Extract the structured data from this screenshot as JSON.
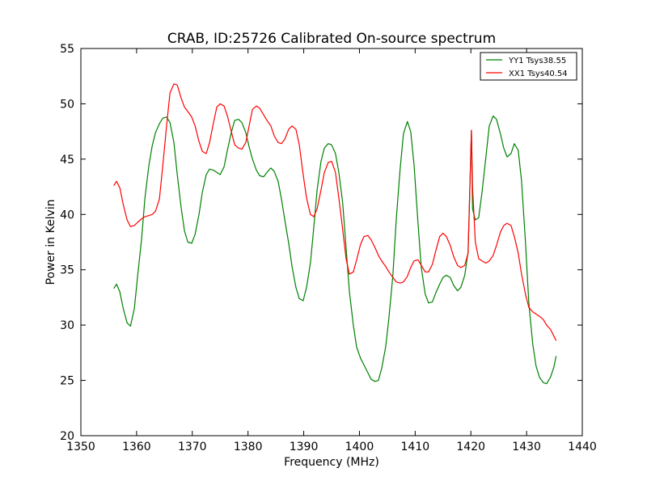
{
  "chart_data": {
    "type": "line",
    "title": "CRAB, ID:25726 Calibrated On-source spectrum",
    "xlabel": "Frequency (MHz)",
    "ylabel": "Power in Kelvin",
    "xlim": [
      1350,
      1440
    ],
    "ylim": [
      20,
      55
    ],
    "xticks": [
      1350,
      1360,
      1370,
      1380,
      1390,
      1400,
      1410,
      1420,
      1430,
      1440
    ],
    "yticks": [
      20,
      25,
      30,
      35,
      40,
      45,
      50,
      55
    ],
    "grid": false,
    "legend_position": "top-right",
    "series": [
      {
        "name": "YY1 Tsys38.55",
        "color": "#008000",
        "x": [
          1355.9,
          1356.4,
          1357.0,
          1357.6,
          1358.3,
          1358.9,
          1359.6,
          1360.2,
          1360.9,
          1361.5,
          1362.2,
          1362.8,
          1363.4,
          1364.1,
          1364.7,
          1365.4,
          1366.0,
          1366.7,
          1367.3,
          1368.0,
          1368.6,
          1369.2,
          1369.9,
          1370.5,
          1371.2,
          1371.8,
          1372.5,
          1373.1,
          1373.8,
          1374.4,
          1375.0,
          1375.7,
          1376.3,
          1377.0,
          1377.6,
          1378.3,
          1378.9,
          1379.6,
          1380.2,
          1380.8,
          1381.5,
          1382.1,
          1382.8,
          1383.4,
          1384.1,
          1384.7,
          1385.4,
          1386.0,
          1386.6,
          1387.3,
          1387.9,
          1388.6,
          1389.2,
          1389.9,
          1390.5,
          1391.2,
          1391.8,
          1392.4,
          1393.1,
          1393.7,
          1394.4,
          1395.0,
          1395.7,
          1396.3,
          1397.0,
          1397.6,
          1398.2,
          1398.9,
          1399.5,
          1400.2,
          1400.8,
          1401.5,
          1402.1,
          1402.8,
          1403.4,
          1404.0,
          1404.7,
          1405.3,
          1406.0,
          1406.6,
          1407.3,
          1407.9,
          1408.6,
          1409.2,
          1409.8,
          1410.5,
          1411.1,
          1411.8,
          1412.4,
          1413.1,
          1413.7,
          1414.4,
          1415.0,
          1415.6,
          1416.3,
          1416.9,
          1417.6,
          1418.2,
          1418.9,
          1419.5,
          1420.1,
          1420.3,
          1420.8,
          1421.4,
          1422.0,
          1422.7,
          1423.3,
          1424.0,
          1424.6,
          1425.3,
          1425.9,
          1426.5,
          1427.2,
          1427.8,
          1428.5,
          1429.1,
          1429.8,
          1430.4,
          1431.1,
          1431.7,
          1432.3,
          1433.0,
          1433.6,
          1434.3,
          1434.9,
          1435.3
        ],
        "values": [
          33.3,
          33.7,
          33.0,
          31.5,
          30.2,
          29.9,
          31.5,
          34.5,
          37.8,
          41.5,
          44.4,
          46.2,
          47.4,
          48.2,
          48.7,
          48.8,
          48.3,
          46.5,
          43.6,
          40.6,
          38.5,
          37.5,
          37.4,
          38.2,
          40.0,
          42.0,
          43.6,
          44.1,
          44.0,
          43.8,
          43.6,
          44.3,
          45.8,
          47.4,
          48.5,
          48.6,
          48.3,
          47.4,
          46.1,
          45.0,
          44.0,
          43.5,
          43.4,
          43.8,
          44.2,
          43.9,
          43.0,
          41.4,
          39.5,
          37.4,
          35.3,
          33.4,
          32.4,
          32.2,
          33.4,
          35.6,
          38.8,
          42.2,
          44.8,
          46.0,
          46.4,
          46.3,
          45.5,
          43.8,
          41.0,
          37.0,
          33.0,
          30.0,
          28.0,
          27.0,
          26.4,
          25.7,
          25.1,
          24.9,
          25.0,
          26.1,
          28.0,
          30.7,
          34.5,
          39.5,
          44.1,
          47.3,
          48.4,
          47.5,
          44.5,
          39.3,
          35.2,
          32.8,
          32.0,
          32.1,
          32.9,
          33.7,
          34.3,
          34.5,
          34.3,
          33.6,
          33.1,
          33.4,
          34.5,
          36.6,
          47.6,
          40.5,
          39.5,
          39.7,
          42.0,
          45.2,
          48.0,
          48.9,
          48.6,
          47.3,
          46.0,
          45.2,
          45.5,
          46.4,
          45.8,
          43.0,
          37.5,
          32.0,
          28.3,
          26.3,
          25.3,
          24.8,
          24.7,
          25.3,
          26.2,
          27.2
        ]
      },
      {
        "name": "XX1 Tsys40.54",
        "color": "#ff0000",
        "x": [
          1355.9,
          1356.4,
          1357.0,
          1357.6,
          1358.3,
          1358.9,
          1359.6,
          1360.2,
          1360.9,
          1361.5,
          1362.2,
          1362.8,
          1363.4,
          1364.1,
          1364.7,
          1365.4,
          1366.0,
          1366.7,
          1367.3,
          1368.0,
          1368.6,
          1369.2,
          1369.9,
          1370.5,
          1371.2,
          1371.8,
          1372.5,
          1373.1,
          1373.8,
          1374.4,
          1375.0,
          1375.7,
          1376.3,
          1377.0,
          1377.6,
          1378.3,
          1378.9,
          1379.6,
          1380.2,
          1380.8,
          1381.5,
          1382.1,
          1382.8,
          1383.4,
          1384.1,
          1384.7,
          1385.4,
          1386.0,
          1386.6,
          1387.3,
          1387.9,
          1388.6,
          1389.2,
          1389.9,
          1390.5,
          1391.2,
          1391.8,
          1392.4,
          1393.1,
          1393.7,
          1394.4,
          1395.0,
          1395.7,
          1396.3,
          1397.0,
          1397.6,
          1398.2,
          1398.9,
          1399.5,
          1400.2,
          1400.8,
          1401.5,
          1402.1,
          1402.8,
          1403.4,
          1404.0,
          1404.7,
          1405.3,
          1406.0,
          1406.6,
          1407.3,
          1407.9,
          1408.6,
          1409.2,
          1409.8,
          1410.5,
          1411.1,
          1411.8,
          1412.4,
          1413.1,
          1413.7,
          1414.4,
          1415.0,
          1415.6,
          1416.3,
          1416.9,
          1417.6,
          1418.2,
          1418.9,
          1419.5,
          1420.1,
          1420.3,
          1420.8,
          1421.4,
          1422.0,
          1422.7,
          1423.3,
          1424.0,
          1424.6,
          1425.3,
          1425.9,
          1426.5,
          1427.2,
          1427.8,
          1428.5,
          1429.1,
          1429.8,
          1430.4,
          1431.1,
          1431.7,
          1432.3,
          1433.0,
          1433.6,
          1434.3,
          1434.9,
          1435.3
        ],
        "values": [
          42.6,
          43.0,
          42.4,
          40.9,
          39.5,
          38.9,
          39.0,
          39.3,
          39.6,
          39.8,
          39.9,
          40.0,
          40.3,
          41.4,
          44.4,
          48.1,
          51.0,
          51.8,
          51.7,
          50.5,
          49.7,
          49.3,
          48.8,
          48.0,
          46.6,
          45.7,
          45.5,
          46.5,
          48.3,
          49.7,
          50.0,
          49.8,
          48.9,
          47.5,
          46.3,
          46.0,
          45.9,
          46.5,
          48.0,
          49.5,
          49.8,
          49.6,
          49.0,
          48.5,
          48.0,
          47.1,
          46.5,
          46.4,
          46.8,
          47.7,
          48.0,
          47.7,
          46.3,
          43.6,
          41.5,
          40.0,
          39.8,
          40.5,
          42.2,
          43.8,
          44.7,
          44.8,
          43.8,
          41.5,
          38.6,
          36.0,
          34.6,
          34.8,
          35.9,
          37.3,
          38.0,
          38.1,
          37.7,
          37.0,
          36.3,
          35.8,
          35.3,
          34.8,
          34.3,
          33.9,
          33.8,
          33.9,
          34.4,
          35.2,
          35.8,
          35.9,
          35.4,
          34.8,
          34.8,
          35.5,
          36.7,
          38.0,
          38.3,
          38.0,
          37.2,
          36.2,
          35.4,
          35.2,
          35.4,
          36.5,
          47.6,
          42.5,
          37.5,
          36.0,
          35.8,
          35.6,
          35.8,
          36.3,
          37.2,
          38.4,
          39.0,
          39.2,
          39.0,
          38.0,
          36.5,
          34.6,
          32.8,
          31.6,
          31.2,
          31.0,
          30.8,
          30.5,
          30.0,
          29.6,
          29.0,
          28.6
        ]
      }
    ]
  }
}
